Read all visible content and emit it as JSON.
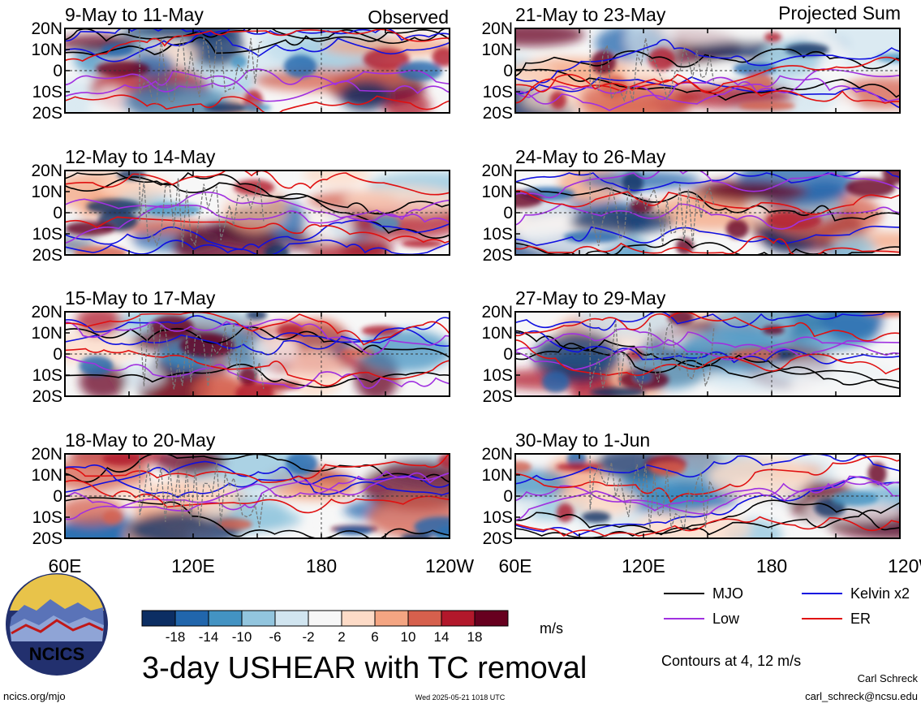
{
  "chart_data": {
    "type": "heatmap",
    "title": "3-day USHEAR with TC removal",
    "units": "m/s",
    "contour_note": "Contours at 4, 12 m/s",
    "lat_ticks": [
      "20N",
      "10N",
      "0",
      "10S",
      "20S"
    ],
    "lon_ticks": [
      "60E",
      "120E",
      "180",
      "120W"
    ],
    "lon_range": [
      60,
      240
    ],
    "lat_range": [
      -20,
      20
    ],
    "colorbar_ticks": [
      "-18",
      "-14",
      "-10",
      "-6",
      "-2",
      "2",
      "6",
      "10",
      "14",
      "18"
    ],
    "colorbar_colors": [
      "#0c2e63",
      "#2166ac",
      "#4393c3",
      "#92c5de",
      "#d1e5f0",
      "#f7f7f7",
      "#fddbc7",
      "#f4a582",
      "#d6604d",
      "#b2182b",
      "#67001f"
    ],
    "columns": {
      "left_header": "Observed",
      "right_header": "Projected Sum"
    },
    "panels": [
      {
        "title": "9-May to 11-May",
        "column": "left",
        "row": 0
      },
      {
        "title": "12-May to 14-May",
        "column": "left",
        "row": 1
      },
      {
        "title": "15-May to 17-May",
        "column": "left",
        "row": 2
      },
      {
        "title": "18-May to 20-May",
        "column": "left",
        "row": 3
      },
      {
        "title": "21-May to 23-May",
        "column": "right",
        "row": 0
      },
      {
        "title": "24-May to 26-May",
        "column": "right",
        "row": 1
      },
      {
        "title": "27-May to 29-May",
        "column": "right",
        "row": 2
      },
      {
        "title": "30-May to 1-Jun",
        "column": "right",
        "row": 3
      }
    ],
    "contour_legend": [
      {
        "name": "MJO",
        "color": "#000000"
      },
      {
        "name": "Kelvin x2",
        "color": "#1010e0"
      },
      {
        "name": "Low",
        "color": "#a030e0"
      },
      {
        "name": "ER",
        "color": "#e01010"
      }
    ],
    "grid": false
  },
  "branding": {
    "logo_text": "NCICS",
    "site": "ncics.org/mjo",
    "timestamp": "Wed 2025-05-21 1018 UTC",
    "author": "Carl Schreck",
    "email": "carl_schreck@ncsu.edu"
  }
}
